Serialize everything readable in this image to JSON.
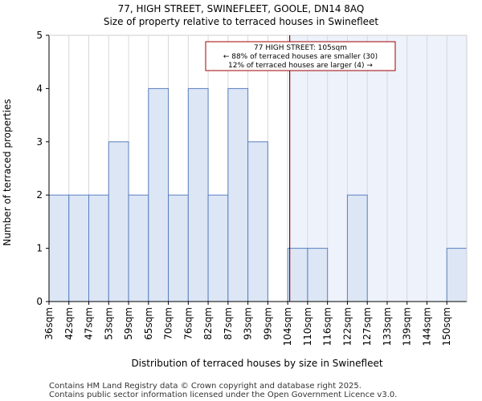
{
  "chart_data": {
    "type": "bar",
    "title": "77, HIGH STREET, SWINEFLEET, GOOLE, DN14 8AQ",
    "subtitle": "Size of property relative to terraced houses in Swinefleet",
    "xlabel": "Distribution of terraced houses by size in Swinefleet",
    "ylabel": "Number of terraced properties",
    "categories": [
      "36sqm",
      "42sqm",
      "47sqm",
      "53sqm",
      "59sqm",
      "65sqm",
      "70sqm",
      "76sqm",
      "82sqm",
      "87sqm",
      "93sqm",
      "99sqm",
      "104sqm",
      "110sqm",
      "116sqm",
      "122sqm",
      "127sqm",
      "133sqm",
      "139sqm",
      "144sqm",
      "150sqm"
    ],
    "values": [
      2,
      2,
      2,
      3,
      2,
      4,
      2,
      4,
      2,
      4,
      3,
      0,
      1,
      1,
      0,
      2,
      0,
      0,
      0,
      0,
      1
    ],
    "ylim": [
      0,
      5
    ],
    "yticks": [
      0,
      1,
      2,
      3,
      4,
      5
    ],
    "marker": {
      "value_sqm": 105,
      "category_position": 12.1
    },
    "annotation": [
      "77 HIGH STREET: 105sqm",
      "← 88% of terraced houses are smaller (30)",
      "12% of terraced houses are larger (4) →"
    ],
    "colors": {
      "bar_fill": "#dce6f5",
      "bar_stroke": "#5b7fc0",
      "highlight_fill": "#eef2fb",
      "marker": "#8b0000",
      "annotation_border": "#a00000",
      "grid": "#d8d8d8"
    }
  },
  "footer": {
    "line1": "Contains HM Land Registry data © Crown copyright and database right 2025.",
    "line2": "Contains public sector information licensed under the Open Government Licence v3.0."
  }
}
